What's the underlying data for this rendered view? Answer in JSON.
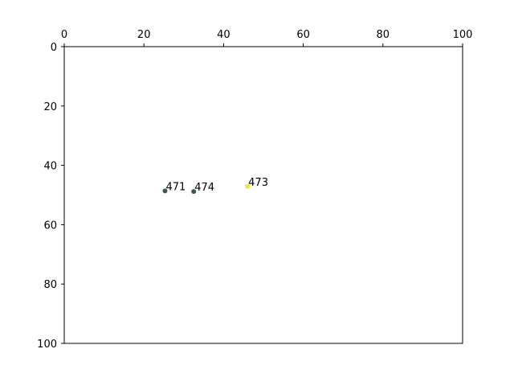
{
  "chart_data": {
    "type": "scatter",
    "title": "",
    "xlabel": "",
    "ylabel": "",
    "xlim": [
      0,
      100
    ],
    "ylim": [
      0,
      100
    ],
    "y_inverted": true,
    "x_axis_position": "top",
    "grid": false,
    "x_ticks": [
      "0",
      "20",
      "40",
      "60",
      "80",
      "100"
    ],
    "y_ticks": [
      "0",
      "20",
      "40",
      "60",
      "80",
      "100"
    ],
    "points": [
      {
        "label": "471",
        "x": 25.3,
        "y": 48.6,
        "color": "#3b5a4a"
      },
      {
        "label": "474",
        "x": 32.5,
        "y": 48.8,
        "color": "#3b5a4a"
      },
      {
        "label": "473",
        "x": 46.0,
        "y": 47.1,
        "color": "#f0e442"
      }
    ]
  }
}
